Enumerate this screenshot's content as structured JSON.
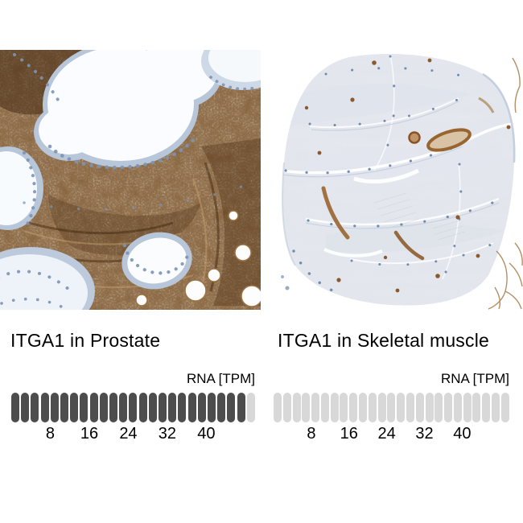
{
  "colors": {
    "segment_filled": "#4d4d4d",
    "segment_empty": "#d8d8d8",
    "text": "#000000",
    "ihc_stain_brown": "#7a4b26",
    "hematoxylin_blue": "#7d94b3",
    "muscle_tissue_pale": "#e8ebf1"
  },
  "panels": [
    {
      "title": "ITGA1 in Prostate",
      "rna_unit_label": "RNA [TPM]",
      "bar": {
        "total_segments": 25,
        "filled_segments": 24,
        "tpm_per_segment": 2,
        "ticks": [
          "8",
          "16",
          "24",
          "32",
          "40"
        ]
      }
    },
    {
      "title": "ITGA1 in Skeletal muscle",
      "rna_unit_label": "RNA [TPM]",
      "bar": {
        "total_segments": 25,
        "filled_segments": 0,
        "tpm_per_segment": 2,
        "ticks": [
          "8",
          "16",
          "24",
          "32",
          "40"
        ]
      }
    }
  ],
  "chart_data": [
    {
      "type": "bar",
      "title": "ITGA1 in Prostate",
      "xlabel": "RNA [TPM]",
      "axis_ticks": [
        8,
        16,
        24,
        32,
        40
      ],
      "xlim": [
        0,
        50
      ],
      "segments_total": 25,
      "segments_filled": 24,
      "tpm_per_segment": 2,
      "approx_value_tpm": 48,
      "legend_position": "none",
      "grid": false
    },
    {
      "type": "bar",
      "title": "ITGA1 in Skeletal muscle",
      "xlabel": "RNA [TPM]",
      "axis_ticks": [
        8,
        16,
        24,
        32,
        40
      ],
      "xlim": [
        0,
        50
      ],
      "segments_total": 25,
      "segments_filled": 0,
      "tpm_per_segment": 2,
      "approx_value_tpm": 0,
      "legend_position": "none",
      "grid": false
    }
  ]
}
